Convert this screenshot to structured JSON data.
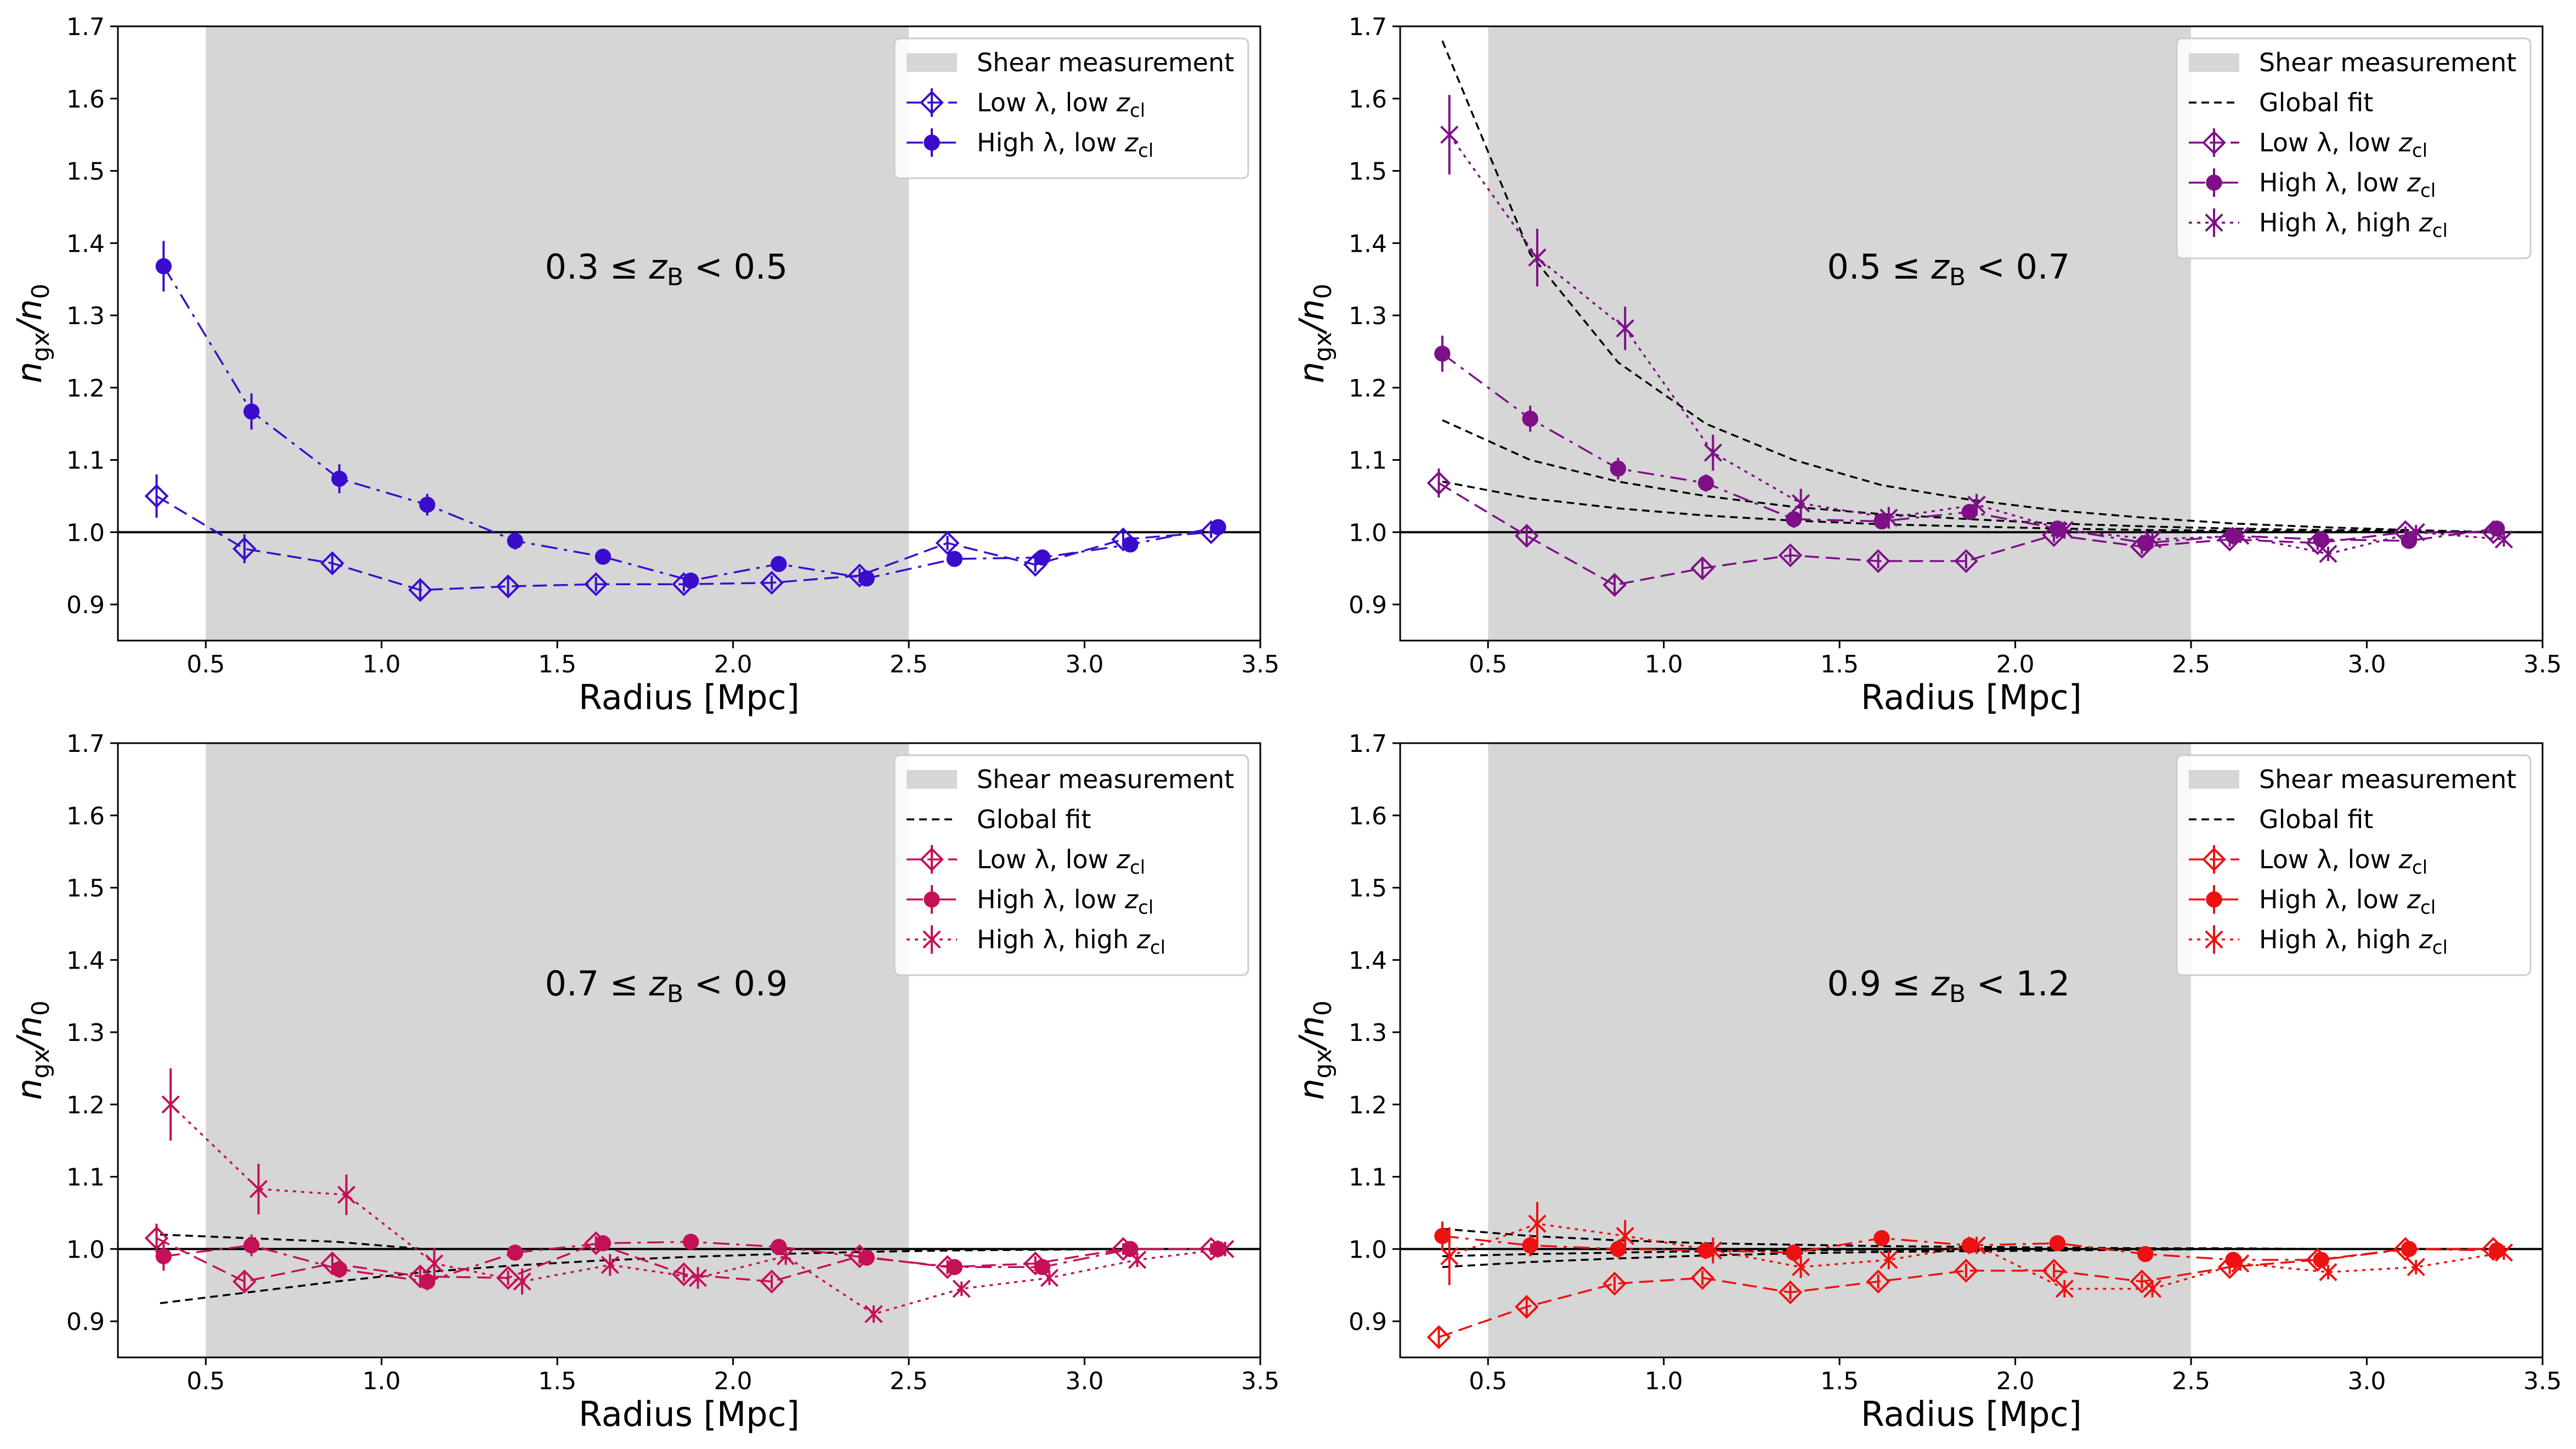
{
  "figure_labels": {
    "xlabel": "Radius [Mpc]",
    "ylabel_main": "n",
    "ylabel_sub_num": "gx",
    "ylabel_den": "/n",
    "ylabel_sub_den": "0"
  },
  "legend_labels": {
    "shear": "Shear measurement",
    "global_fit": "Global fit",
    "low_low": "Low λ, low ",
    "high_low": "High λ, low ",
    "high_high": "High λ, high ",
    "z_main": "z",
    "z_sub": "cl"
  },
  "chart_data": [
    {
      "type": "line",
      "annotation": "0.3 ≤ z_B < 0.5",
      "annotation_parts": [
        "0.3 ≤ ",
        "z",
        "B",
        " < 0.5"
      ],
      "color": "#3a0ccc",
      "xlim": [
        0.25,
        3.5
      ],
      "ylim": [
        0.85,
        1.7
      ],
      "xticks": [
        0.5,
        1.0,
        1.5,
        2.0,
        2.5,
        3.0,
        3.5
      ],
      "yticks": [
        0.9,
        1.0,
        1.1,
        1.2,
        1.3,
        1.4,
        1.5,
        1.6,
        1.7
      ],
      "shaded_region": [
        0.5,
        2.5
      ],
      "reference_line": 1.0,
      "legend": [
        "Shear measurement",
        "Low λ, low z_cl",
        "High λ, low z_cl"
      ],
      "series": [
        {
          "name": "Low λ, low z_cl",
          "marker": "diamond-open",
          "linestyle": "dashed",
          "x": [
            0.36,
            0.61,
            0.86,
            1.11,
            1.36,
            1.61,
            1.86,
            2.11,
            2.36,
            2.61,
            2.86,
            3.11,
            3.36
          ],
          "y": [
            1.05,
            0.977,
            0.957,
            0.92,
            0.925,
            0.928,
            0.928,
            0.93,
            0.94,
            0.985,
            0.955,
            0.99,
            1.0
          ],
          "err": [
            0.03,
            0.02,
            0.015,
            0.012,
            0.012,
            0.01,
            0.01,
            0.01,
            0.01,
            0.01,
            0.01,
            0.01,
            0.008
          ]
        },
        {
          "name": "High λ, low z_cl",
          "marker": "circle",
          "linestyle": "dashdot",
          "x": [
            0.38,
            0.63,
            0.88,
            1.13,
            1.38,
            1.63,
            1.88,
            2.13,
            2.38,
            2.63,
            2.88,
            3.13,
            3.38
          ],
          "y": [
            1.368,
            1.167,
            1.074,
            1.038,
            0.988,
            0.966,
            0.933,
            0.956,
            0.936,
            0.963,
            0.965,
            0.983,
            1.007
          ],
          "err": [
            0.035,
            0.025,
            0.02,
            0.015,
            0.012,
            0.01,
            0.01,
            0.01,
            0.01,
            0.01,
            0.01,
            0.008,
            0.008
          ]
        }
      ],
      "global_fit": []
    },
    {
      "type": "line",
      "annotation": "0.5 ≤ z_B < 0.7",
      "annotation_parts": [
        "0.5 ≤ ",
        "z",
        "B",
        " < 0.7"
      ],
      "color": "#7e0f87",
      "xlim": [
        0.25,
        3.5
      ],
      "ylim": [
        0.85,
        1.7
      ],
      "xticks": [
        0.5,
        1.0,
        1.5,
        2.0,
        2.5,
        3.0,
        3.5
      ],
      "yticks": [
        0.9,
        1.0,
        1.1,
        1.2,
        1.3,
        1.4,
        1.5,
        1.6,
        1.7
      ],
      "shaded_region": [
        0.5,
        2.5
      ],
      "reference_line": 1.0,
      "legend": [
        "Shear measurement",
        "Global fit",
        "Low λ, low z_cl",
        "High λ, low z_cl",
        "High λ, high z_cl"
      ],
      "series": [
        {
          "name": "Low λ, low z_cl",
          "marker": "diamond-open",
          "linestyle": "dashed",
          "x": [
            0.36,
            0.61,
            0.86,
            1.11,
            1.36,
            1.61,
            1.86,
            2.11,
            2.36,
            2.61,
            2.86,
            3.11,
            3.36
          ],
          "y": [
            1.068,
            0.995,
            0.927,
            0.95,
            0.968,
            0.96,
            0.96,
            0.996,
            0.98,
            0.99,
            0.985,
            1.0,
            1.0
          ],
          "err": [
            0.02,
            0.015,
            0.012,
            0.012,
            0.01,
            0.01,
            0.01,
            0.01,
            0.01,
            0.01,
            0.01,
            0.008,
            0.008
          ]
        },
        {
          "name": "High λ, low z_cl",
          "marker": "circle",
          "linestyle": "dashdot",
          "x": [
            0.37,
            0.62,
            0.87,
            1.12,
            1.37,
            1.62,
            1.87,
            2.12,
            2.37,
            2.62,
            2.87,
            3.12,
            3.37
          ],
          "y": [
            1.247,
            1.157,
            1.088,
            1.068,
            1.018,
            1.015,
            1.028,
            1.005,
            0.985,
            0.995,
            0.99,
            0.988,
            1.005
          ],
          "err": [
            0.025,
            0.018,
            0.015,
            0.012,
            0.012,
            0.01,
            0.01,
            0.01,
            0.01,
            0.01,
            0.01,
            0.008,
            0.008
          ]
        },
        {
          "name": "High λ, high z_cl",
          "marker": "x",
          "linestyle": "dotted",
          "x": [
            0.39,
            0.64,
            0.89,
            1.14,
            1.39,
            1.64,
            1.89,
            2.14,
            2.39,
            2.64,
            2.89,
            3.14,
            3.39
          ],
          "y": [
            1.55,
            1.38,
            1.282,
            1.11,
            1.04,
            1.02,
            1.038,
            1.003,
            0.99,
            0.995,
            0.97,
            1.0,
            0.99
          ],
          "err": [
            0.055,
            0.04,
            0.03,
            0.025,
            0.02,
            0.015,
            0.015,
            0.012,
            0.012,
            0.01,
            0.01,
            0.01,
            0.01
          ]
        }
      ],
      "global_fit": [
        {
          "x": [
            0.37,
            0.62,
            0.87,
            1.12,
            1.37,
            1.62,
            1.87,
            2.12,
            2.37,
            2.62,
            2.87,
            3.12,
            3.37
          ],
          "y": [
            1.68,
            1.385,
            1.235,
            1.15,
            1.1,
            1.065,
            1.045,
            1.03,
            1.02,
            1.012,
            1.007,
            1.003,
            1.0
          ]
        },
        {
          "x": [
            0.37,
            0.62,
            0.87,
            1.12,
            1.37,
            1.62,
            1.87,
            2.12,
            2.37,
            2.62,
            2.87,
            3.12,
            3.37
          ],
          "y": [
            1.155,
            1.1,
            1.07,
            1.05,
            1.035,
            1.025,
            1.018,
            1.012,
            1.008,
            1.005,
            1.003,
            1.002,
            1.0
          ]
        },
        {
          "x": [
            0.37,
            0.62,
            0.87,
            1.12,
            1.37,
            1.62,
            1.87,
            2.12,
            2.37,
            2.62,
            2.87,
            3.12,
            3.37
          ],
          "y": [
            1.07,
            1.047,
            1.033,
            1.023,
            1.016,
            1.011,
            1.008,
            1.005,
            1.003,
            1.002,
            1.001,
            1.0,
            1.0
          ]
        }
      ]
    },
    {
      "type": "line",
      "annotation": "0.7 ≤ z_B < 0.9",
      "annotation_parts": [
        "0.7 ≤ ",
        "z",
        "B",
        " < 0.9"
      ],
      "color": "#c41057",
      "xlim": [
        0.25,
        3.5
      ],
      "ylim": [
        0.85,
        1.7
      ],
      "xticks": [
        0.5,
        1.0,
        1.5,
        2.0,
        2.5,
        3.0,
        3.5
      ],
      "yticks": [
        0.9,
        1.0,
        1.1,
        1.2,
        1.3,
        1.4,
        1.5,
        1.6,
        1.7
      ],
      "shaded_region": [
        0.5,
        2.5
      ],
      "reference_line": 1.0,
      "legend": [
        "Shear measurement",
        "Global fit",
        "Low λ, low z_cl",
        "High λ, low z_cl",
        "High λ, high z_cl"
      ],
      "series": [
        {
          "name": "Low λ, low z_cl",
          "marker": "diamond-open",
          "linestyle": "dashed",
          "x": [
            0.36,
            0.61,
            0.86,
            1.11,
            1.36,
            1.61,
            1.86,
            2.11,
            2.36,
            2.61,
            2.86,
            3.11,
            3.36
          ],
          "y": [
            1.015,
            0.955,
            0.98,
            0.962,
            0.96,
            1.008,
            0.965,
            0.955,
            0.99,
            0.975,
            0.98,
            1.0,
            1.0
          ],
          "err": [
            0.02,
            0.015,
            0.012,
            0.012,
            0.01,
            0.01,
            0.01,
            0.01,
            0.01,
            0.01,
            0.01,
            0.008,
            0.008
          ]
        },
        {
          "name": "High λ, low z_cl",
          "marker": "circle",
          "linestyle": "dashdot",
          "x": [
            0.38,
            0.63,
            0.88,
            1.13,
            1.38,
            1.63,
            1.88,
            2.13,
            2.38,
            2.63,
            2.88,
            3.13,
            3.38
          ],
          "y": [
            0.99,
            1.005,
            0.972,
            0.955,
            0.995,
            1.008,
            1.01,
            1.003,
            0.988,
            0.975,
            0.975,
            1.0,
            1.0
          ],
          "err": [
            0.02,
            0.015,
            0.012,
            0.012,
            0.01,
            0.01,
            0.01,
            0.01,
            0.01,
            0.01,
            0.01,
            0.008,
            0.008
          ]
        },
        {
          "name": "High λ, high z_cl",
          "marker": "x",
          "linestyle": "dotted",
          "x": [
            0.4,
            0.65,
            0.9,
            1.15,
            1.4,
            1.65,
            1.9,
            2.15,
            2.4,
            2.65,
            2.9,
            3.15,
            3.4
          ],
          "y": [
            1.2,
            1.083,
            1.075,
            0.98,
            0.955,
            0.978,
            0.96,
            0.99,
            0.91,
            0.945,
            0.96,
            0.985,
            1.0
          ],
          "err": [
            0.05,
            0.035,
            0.028,
            0.022,
            0.018,
            0.015,
            0.015,
            0.012,
            0.012,
            0.01,
            0.01,
            0.01,
            0.01
          ]
        }
      ],
      "global_fit": [
        {
          "x": [
            0.37,
            0.62,
            0.87,
            1.12,
            1.37,
            1.62,
            1.87,
            2.12,
            2.37,
            2.62,
            2.87,
            3.12,
            3.37
          ],
          "y": [
            1.02,
            1.015,
            1.01,
            1.0,
            1.0,
            1.0,
            1.0,
            1.0,
            1.0,
            1.0,
            1.0,
            1.0,
            1.0
          ]
        },
        {
          "x": [
            0.37,
            0.62,
            0.87,
            1.12,
            1.37,
            1.62,
            1.87,
            2.12,
            2.37,
            2.62,
            2.87,
            3.12,
            3.37
          ],
          "y": [
            0.925,
            0.94,
            0.955,
            0.968,
            0.977,
            0.984,
            0.989,
            0.993,
            0.996,
            0.998,
            0.999,
            1.0,
            1.0
          ]
        }
      ]
    },
    {
      "type": "line",
      "annotation": "0.9 ≤ z_B < 1.2",
      "annotation_parts": [
        "0.9 ≤ ",
        "z",
        "B",
        " < 1.2"
      ],
      "color": "#ee1111",
      "xlim": [
        0.25,
        3.5
      ],
      "ylim": [
        0.85,
        1.7
      ],
      "xticks": [
        0.5,
        1.0,
        1.5,
        2.0,
        2.5,
        3.0,
        3.5
      ],
      "yticks": [
        0.9,
        1.0,
        1.1,
        1.2,
        1.3,
        1.4,
        1.5,
        1.6,
        1.7
      ],
      "shaded_region": [
        0.5,
        2.5
      ],
      "reference_line": 1.0,
      "legend": [
        "Shear measurement",
        "Global fit",
        "Low λ, low z_cl",
        "High λ, low z_cl",
        "High λ, high z_cl"
      ],
      "series": [
        {
          "name": "Low λ, low z_cl",
          "marker": "diamond-open",
          "linestyle": "dashed",
          "x": [
            0.36,
            0.61,
            0.86,
            1.11,
            1.36,
            1.61,
            1.86,
            2.11,
            2.36,
            2.61,
            2.86,
            3.11,
            3.36
          ],
          "y": [
            0.878,
            0.92,
            0.952,
            0.96,
            0.94,
            0.955,
            0.97,
            0.97,
            0.955,
            0.975,
            0.985,
            1.0,
            1.0
          ],
          "err": [
            0.015,
            0.012,
            0.01,
            0.01,
            0.01,
            0.01,
            0.01,
            0.01,
            0.01,
            0.01,
            0.01,
            0.008,
            0.008
          ]
        },
        {
          "name": "High λ, low z_cl",
          "marker": "circle",
          "linestyle": "dashdot",
          "x": [
            0.37,
            0.62,
            0.87,
            1.12,
            1.37,
            1.62,
            1.87,
            2.12,
            2.37,
            2.62,
            2.87,
            3.12,
            3.37
          ],
          "y": [
            1.018,
            1.005,
            1.0,
            0.998,
            0.995,
            1.015,
            1.005,
            1.008,
            0.993,
            0.985,
            0.985,
            1.0,
            0.998
          ],
          "err": [
            0.02,
            0.015,
            0.012,
            0.01,
            0.01,
            0.01,
            0.01,
            0.01,
            0.01,
            0.01,
            0.01,
            0.008,
            0.008
          ]
        },
        {
          "name": "High λ, high z_cl",
          "marker": "x",
          "linestyle": "dotted",
          "x": [
            0.39,
            0.64,
            0.89,
            1.14,
            1.39,
            1.64,
            1.89,
            2.14,
            2.39,
            2.64,
            2.89,
            3.14,
            3.39
          ],
          "y": [
            0.99,
            1.035,
            1.018,
            0.998,
            0.975,
            0.985,
            1.005,
            0.945,
            0.945,
            0.98,
            0.968,
            0.975,
            0.995
          ],
          "err": [
            0.04,
            0.03,
            0.022,
            0.018,
            0.015,
            0.013,
            0.012,
            0.012,
            0.012,
            0.01,
            0.01,
            0.01,
            0.01
          ]
        }
      ],
      "global_fit": [
        {
          "x": [
            0.37,
            0.62,
            0.87,
            1.12,
            1.37,
            1.62,
            1.87,
            2.12,
            2.37,
            2.62,
            2.87,
            3.12,
            3.37
          ],
          "y": [
            1.028,
            1.018,
            1.012,
            1.008,
            1.006,
            1.004,
            1.003,
            1.002,
            1.001,
            1.001,
            1.0,
            1.0,
            1.0
          ]
        },
        {
          "x": [
            0.37,
            0.62,
            0.87,
            1.12,
            1.37,
            1.62,
            1.87,
            2.12,
            2.37,
            2.62,
            2.87,
            3.12,
            3.37
          ],
          "y": [
            0.99,
            0.993,
            0.995,
            0.997,
            0.998,
            0.999,
            0.999,
            1.0,
            1.0,
            1.0,
            1.0,
            1.0,
            1.0
          ]
        },
        {
          "x": [
            0.37,
            0.62,
            0.87,
            1.12,
            1.37,
            1.62,
            1.87,
            2.12,
            2.37,
            2.62,
            2.87,
            3.12,
            3.37
          ],
          "y": [
            0.975,
            0.982,
            0.987,
            0.991,
            0.994,
            0.996,
            0.997,
            0.998,
            0.999,
            1.0,
            1.0,
            1.0,
            1.0
          ]
        }
      ]
    }
  ]
}
